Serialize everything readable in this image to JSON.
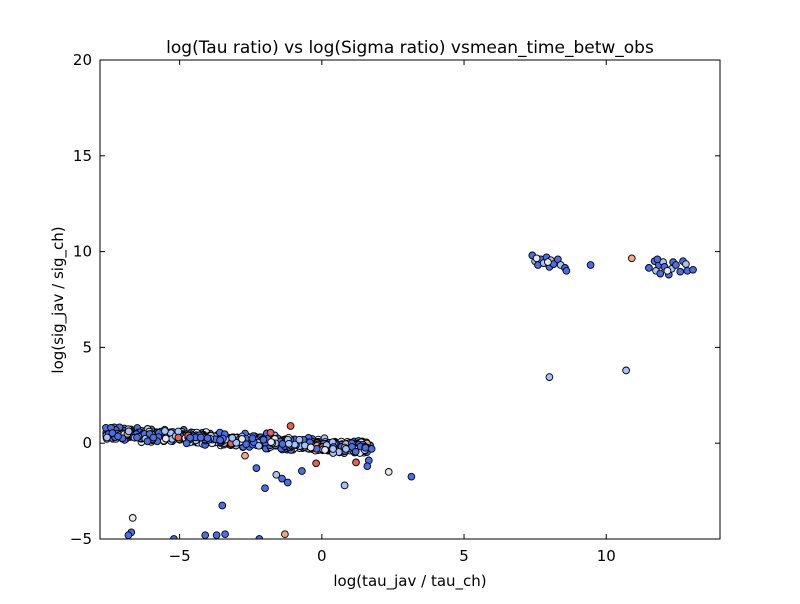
{
  "chart_data": {
    "type": "scatter",
    "title": "log(Tau ratio) vs log(Sigma ratio) vsmean_time_betw_obs",
    "xlabel": "log(tau_jav / tau_ch)",
    "ylabel": "log(sig_jav / sig_ch)",
    "xlim": [
      -7.8,
      14.0
    ],
    "ylim": [
      -5,
      20
    ],
    "xticks": [
      -5,
      0,
      5,
      10
    ],
    "xtick_labels": [
      "−5",
      "0",
      "5",
      "10"
    ],
    "yticks": [
      -5,
      0,
      5,
      10,
      15,
      20
    ],
    "ytick_labels": [
      "−5",
      "0",
      "5",
      "10",
      "15",
      "20"
    ],
    "grid": false,
    "marker_edge_color": "#000000",
    "colors": {
      "blue": "#4a6fe3",
      "lightblue": "#a5c3fb",
      "white": "#e8e8ec",
      "peach": "#f4a582",
      "red": "#e0634f"
    },
    "cluster_main": {
      "x_range": [
        -7.6,
        1.7
      ],
      "y_start_mean": 0.55,
      "y_end_mean": -0.25,
      "y_spread": 0.55,
      "count": 950
    },
    "points": [
      {
        "x": 8.0,
        "y": 3.45,
        "c": "lightblue"
      },
      {
        "x": 10.7,
        "y": 3.8,
        "c": "lightblue"
      },
      {
        "x": 9.45,
        "y": 9.3,
        "c": "blue"
      },
      {
        "x": 10.9,
        "y": 9.65,
        "c": "peach"
      },
      {
        "x": 7.4,
        "y": 9.8,
        "c": "blue"
      },
      {
        "x": 7.5,
        "y": 9.5,
        "c": "lightblue"
      },
      {
        "x": 7.6,
        "y": 9.3,
        "c": "blue"
      },
      {
        "x": 7.7,
        "y": 9.6,
        "c": "blue"
      },
      {
        "x": 7.8,
        "y": 9.4,
        "c": "lightblue"
      },
      {
        "x": 7.9,
        "y": 9.7,
        "c": "blue"
      },
      {
        "x": 8.0,
        "y": 9.2,
        "c": "blue"
      },
      {
        "x": 8.05,
        "y": 9.55,
        "c": "lightblue"
      },
      {
        "x": 8.15,
        "y": 9.35,
        "c": "blue"
      },
      {
        "x": 8.3,
        "y": 9.6,
        "c": "blue"
      },
      {
        "x": 8.4,
        "y": 9.3,
        "c": "lightblue"
      },
      {
        "x": 8.55,
        "y": 9.15,
        "c": "blue"
      },
      {
        "x": 8.6,
        "y": 9.0,
        "c": "blue"
      },
      {
        "x": 7.55,
        "y": 9.65,
        "c": "white"
      },
      {
        "x": 7.95,
        "y": 9.45,
        "c": "white"
      },
      {
        "x": 11.5,
        "y": 9.15,
        "c": "blue"
      },
      {
        "x": 11.7,
        "y": 9.5,
        "c": "blue"
      },
      {
        "x": 11.75,
        "y": 9.0,
        "c": "lightblue"
      },
      {
        "x": 11.85,
        "y": 9.3,
        "c": "blue"
      },
      {
        "x": 11.9,
        "y": 8.85,
        "c": "blue"
      },
      {
        "x": 12.0,
        "y": 9.45,
        "c": "lightblue"
      },
      {
        "x": 12.05,
        "y": 9.2,
        "c": "blue"
      },
      {
        "x": 12.2,
        "y": 8.8,
        "c": "blue"
      },
      {
        "x": 12.3,
        "y": 9.1,
        "c": "lightblue"
      },
      {
        "x": 12.35,
        "y": 9.45,
        "c": "blue"
      },
      {
        "x": 12.45,
        "y": 9.3,
        "c": "blue"
      },
      {
        "x": 12.6,
        "y": 8.95,
        "c": "blue"
      },
      {
        "x": 12.7,
        "y": 9.5,
        "c": "blue"
      },
      {
        "x": 12.8,
        "y": 9.35,
        "c": "lightblue"
      },
      {
        "x": 12.85,
        "y": 9.0,
        "c": "blue"
      },
      {
        "x": 13.05,
        "y": 9.05,
        "c": "blue"
      },
      {
        "x": 11.8,
        "y": 9.6,
        "c": "blue"
      },
      {
        "x": 12.15,
        "y": 9.0,
        "c": "white"
      },
      {
        "x": 1.75,
        "y": -0.3,
        "c": "blue"
      },
      {
        "x": 1.65,
        "y": -0.9,
        "c": "blue"
      },
      {
        "x": 1.6,
        "y": -1.2,
        "c": "blue"
      },
      {
        "x": 2.35,
        "y": -1.5,
        "c": "white"
      },
      {
        "x": 3.15,
        "y": -1.75,
        "c": "blue"
      },
      {
        "x": 0.8,
        "y": -2.2,
        "c": "lightblue"
      },
      {
        "x": -0.7,
        "y": -1.45,
        "c": "blue"
      },
      {
        "x": -1.2,
        "y": -2.05,
        "c": "blue"
      },
      {
        "x": -1.4,
        "y": -1.85,
        "c": "blue"
      },
      {
        "x": -1.6,
        "y": -1.65,
        "c": "lightblue"
      },
      {
        "x": -2.0,
        "y": -2.35,
        "c": "blue"
      },
      {
        "x": -2.3,
        "y": -1.3,
        "c": "blue"
      },
      {
        "x": -3.5,
        "y": -3.25,
        "c": "blue"
      },
      {
        "x": -6.65,
        "y": -3.9,
        "c": "white"
      },
      {
        "x": -6.7,
        "y": -4.65,
        "c": "blue"
      },
      {
        "x": -6.8,
        "y": -4.8,
        "c": "blue"
      },
      {
        "x": -5.2,
        "y": -5.0,
        "c": "blue"
      },
      {
        "x": -4.1,
        "y": -4.8,
        "c": "blue"
      },
      {
        "x": -3.7,
        "y": -4.8,
        "c": "blue"
      },
      {
        "x": -3.4,
        "y": -4.75,
        "c": "blue"
      },
      {
        "x": -2.2,
        "y": -5.0,
        "c": "blue"
      },
      {
        "x": -1.3,
        "y": -4.75,
        "c": "peach"
      },
      {
        "x": -1.1,
        "y": 0.9,
        "c": "red"
      },
      {
        "x": -0.2,
        "y": -1.05,
        "c": "red"
      },
      {
        "x": 1.2,
        "y": -1.0,
        "c": "red"
      },
      {
        "x": -1.8,
        "y": 0.55,
        "c": "red"
      },
      {
        "x": -2.7,
        "y": -0.65,
        "c": "peach"
      }
    ]
  }
}
